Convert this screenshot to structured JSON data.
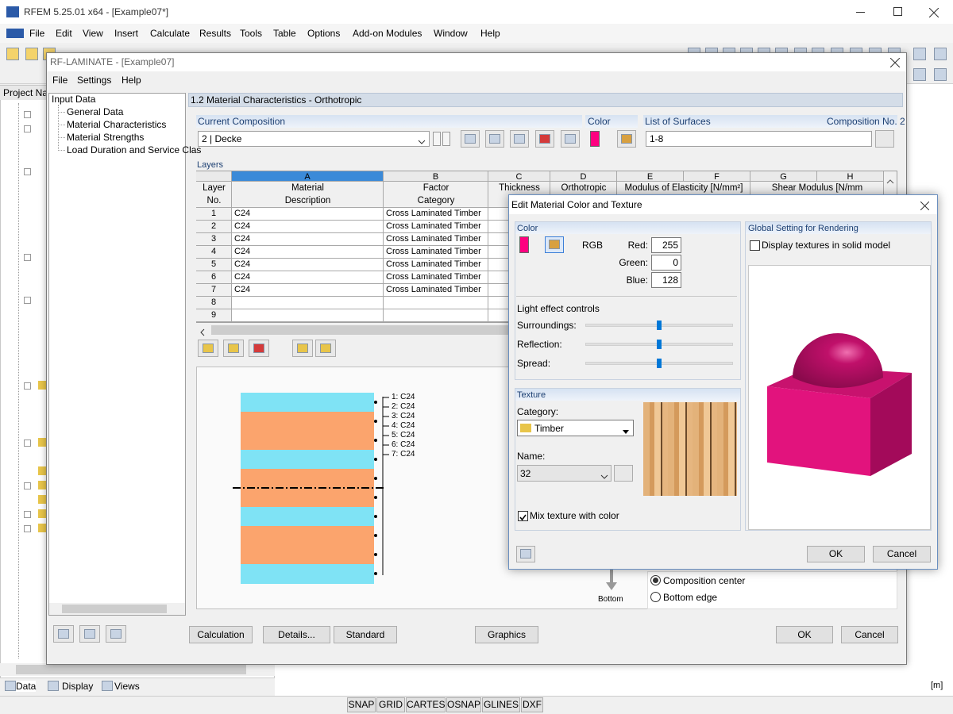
{
  "app": {
    "title": "RFEM 5.25.01 x64 - [Example07*]",
    "menu": [
      "File",
      "Edit",
      "View",
      "Insert",
      "Calculate",
      "Results",
      "Tools",
      "Table",
      "Options",
      "Add-on Modules",
      "Window",
      "Help"
    ],
    "panel_title": "Project Na",
    "panel_tabs": [
      "Data",
      "Display",
      "Views"
    ],
    "status_buttons": [
      "SNAP",
      "GRID",
      "CARTES",
      "OSNAP",
      "GLINES",
      "DXF"
    ],
    "unit": "[m]"
  },
  "module": {
    "title": "RF-LAMINATE - [Example07]",
    "menu": [
      "File",
      "Settings",
      "Help"
    ],
    "tree_root": "Input Data",
    "tree_items": [
      "General Data",
      "Material Characteristics",
      "Material Strengths",
      "Load Duration and Service Clas"
    ],
    "section_title": "1.2 Material Characteristics - Orthotropic",
    "composition_label": "Current Composition",
    "composition_value": "2 | Decke",
    "color_label": "Color",
    "surfaces_label": "List of Surfaces",
    "composition_no": "Composition No. 2",
    "surfaces_value": "1-8",
    "layers_label": "Layers",
    "table": {
      "column_letters": [
        "A",
        "B",
        "C",
        "D",
        "E",
        "F",
        "G",
        "H"
      ],
      "headers": [
        [
          "Layer",
          "No."
        ],
        [
          "Material",
          "Description"
        ],
        [
          "Factor",
          "Category"
        ],
        [
          "Thickness"
        ],
        [
          "Orthotropic"
        ],
        [
          "Modulus of Elasticity [N/mm²]"
        ],
        [
          "Shear Modulus [N/mm"
        ]
      ],
      "rows": [
        [
          "1",
          "C24",
          "Cross Laminated Timber"
        ],
        [
          "2",
          "C24",
          "Cross Laminated Timber"
        ],
        [
          "3",
          "C24",
          "Cross Laminated Timber"
        ],
        [
          "4",
          "C24",
          "Cross Laminated Timber"
        ],
        [
          "5",
          "C24",
          "Cross Laminated Timber"
        ],
        [
          "6",
          "C24",
          "Cross Laminated Timber"
        ],
        [
          "7",
          "C24",
          "Cross Laminated Timber"
        ],
        [
          "8"
        ],
        [
          "9"
        ]
      ]
    },
    "diagram": {
      "layer_labels": [
        "1: C24",
        "2: C24",
        "3: C24",
        "4: C24",
        "5: C24",
        "6: C24",
        "7: C24"
      ],
      "bottom_label": "Bottom",
      "reference_options": [
        "Composition center",
        "Bottom edge"
      ]
    },
    "buttons": [
      "Calculation",
      "Details...",
      "Standard",
      "Graphics",
      "OK",
      "Cancel"
    ]
  },
  "dialog": {
    "title": "Edit Material Color and Texture",
    "color_group": "Color",
    "rgb_label": "RGB",
    "channels": [
      {
        "label": "Red:",
        "value": 255
      },
      {
        "label": "Green:",
        "value": 0
      },
      {
        "label": "Blue:",
        "value": 128
      }
    ],
    "light_label": "Light effect controls",
    "light_controls": [
      "Surroundings:",
      "Reflection:",
      "Spread:"
    ],
    "texture_group": "Texture",
    "category_label": "Category:",
    "category_value": "Timber",
    "name_label": "Name:",
    "name_value": "32",
    "mix_texture": "Mix texture with color",
    "global_group": "Global Setting for Rendering",
    "display_textures": "Display textures in solid model",
    "buttons": [
      "OK",
      "Cancel"
    ]
  }
}
